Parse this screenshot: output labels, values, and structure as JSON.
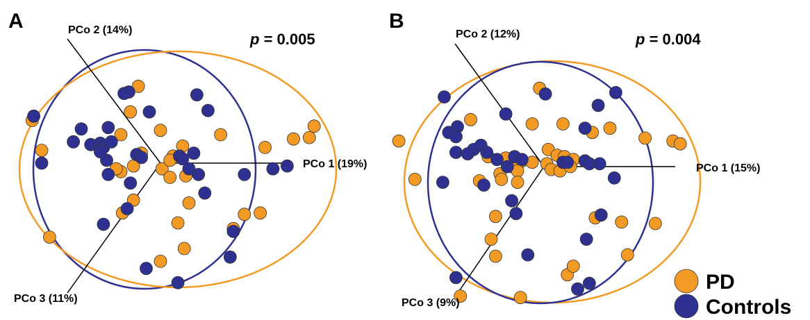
{
  "colors": {
    "PD": "#F39A24",
    "Controls": "#2E3192"
  },
  "legend": [
    {
      "key": "PD",
      "label": "PD"
    },
    {
      "key": "Controls",
      "label": "Controls"
    }
  ],
  "chart_data": [
    {
      "type": "scatter",
      "panel": "A",
      "p_label": "p",
      "p_value": "= 0.005",
      "axes": {
        "pco1": "PCo 1 (19%)",
        "pco2": "PCo 2 (14%)",
        "pco3": "PCo 3 (11%)"
      },
      "series": [
        {
          "name": "PD",
          "points": [
            [
              -0.14,
              0.54
            ],
            [
              -0.19,
              0.36
            ],
            [
              -0.81,
              0.3
            ],
            [
              -0.25,
              0.2
            ],
            [
              -0.75,
              0.09
            ],
            [
              0.0,
              0.23
            ],
            [
              0.08,
              0.05
            ],
            [
              0.14,
              0.12
            ],
            [
              0.38,
              0.2
            ],
            [
              0.66,
              0.11
            ],
            [
              0.84,
              0.17
            ],
            [
              0.94,
              0.18
            ],
            [
              0.97,
              0.26
            ],
            [
              -0.12,
              0.07
            ],
            [
              -0.17,
              -0.02
            ],
            [
              -0.25,
              -0.06
            ],
            [
              -0.28,
              -0.04
            ],
            [
              0.01,
              -0.04
            ],
            [
              0.06,
              0.02
            ],
            [
              0.06,
              -0.1
            ],
            [
              0.16,
              -0.09
            ],
            [
              -0.17,
              -0.26
            ],
            [
              0.18,
              -0.28
            ],
            [
              -0.24,
              -0.35
            ],
            [
              0.11,
              -0.42
            ],
            [
              0.53,
              -0.36
            ],
            [
              0.63,
              -0.35
            ],
            [
              0.46,
              -0.46
            ],
            [
              0.15,
              -0.6
            ],
            [
              0.0,
              -0.69
            ],
            [
              -0.7,
              -0.52
            ]
          ]
        },
        {
          "name": "Controls",
          "points": [
            [
              -0.2,
              0.5
            ],
            [
              -0.23,
              0.49
            ],
            [
              0.23,
              0.48
            ],
            [
              -0.8,
              0.33
            ],
            [
              -0.07,
              0.36
            ],
            [
              0.3,
              0.37
            ],
            [
              -0.5,
              0.24
            ],
            [
              -0.33,
              0.25
            ],
            [
              -0.55,
              0.15
            ],
            [
              -0.44,
              0.13
            ],
            [
              -0.38,
              0.14
            ],
            [
              -0.36,
              0.11
            ],
            [
              -0.31,
              0.15
            ],
            [
              -0.38,
              0.08
            ],
            [
              -0.15,
              0.06
            ],
            [
              -0.12,
              0.04
            ],
            [
              -0.34,
              0.02
            ],
            [
              -0.75,
              0.0
            ],
            [
              0.12,
              0.05
            ],
            [
              0.21,
              0.07
            ],
            [
              0.14,
              0.03
            ],
            [
              0.18,
              -0.04
            ],
            [
              0.24,
              -0.08
            ],
            [
              0.53,
              -0.08
            ],
            [
              0.71,
              -0.04
            ],
            [
              0.8,
              -0.02
            ],
            [
              -0.33,
              -0.08
            ],
            [
              -0.19,
              -0.14
            ],
            [
              -0.21,
              -0.32
            ],
            [
              0.28,
              -0.21
            ],
            [
              -0.36,
              -0.43
            ],
            [
              0.46,
              -0.48
            ],
            [
              -0.09,
              -0.74
            ],
            [
              0.44,
              -0.66
            ],
            [
              0.11,
              -0.84
            ]
          ]
        }
      ]
    },
    {
      "type": "scatter",
      "panel": "B",
      "p_label": "p",
      "p_value": "= 0.004",
      "axes": {
        "pco1": "PCo 1 (15%)",
        "pco2": "PCo 2 (12%)",
        "pco3": "PCo 3 (9%)"
      },
      "series": [
        {
          "name": "PD",
          "points": [
            [
              -0.03,
              0.55
            ],
            [
              -0.5,
              0.33
            ],
            [
              -0.08,
              0.3
            ],
            [
              0.13,
              0.3
            ],
            [
              0.45,
              0.27
            ],
            [
              0.33,
              0.24
            ],
            [
              0.69,
              0.2
            ],
            [
              0.88,
              0.18
            ],
            [
              0.93,
              0.16
            ],
            [
              -0.99,
              0.18
            ],
            [
              0.03,
              0.12
            ],
            [
              0.09,
              0.08
            ],
            [
              0.14,
              0.07
            ],
            [
              0.2,
              0.05
            ],
            [
              -0.38,
              0.07
            ],
            [
              -0.26,
              0.06
            ],
            [
              -0.15,
              0.04
            ],
            [
              -0.08,
              0.03
            ],
            [
              0.02,
              0.02
            ],
            [
              0.05,
              -0.02
            ],
            [
              0.11,
              -0.03
            ],
            [
              0.18,
              0.0
            ],
            [
              -0.22,
              0.0
            ],
            [
              -0.18,
              -0.03
            ],
            [
              -0.3,
              -0.05
            ],
            [
              -0.29,
              -0.09
            ],
            [
              -0.18,
              -0.11
            ],
            [
              -0.44,
              -0.1
            ],
            [
              -0.88,
              -0.09
            ],
            [
              0.35,
              -0.36
            ],
            [
              0.53,
              -0.39
            ],
            [
              0.76,
              -0.4
            ],
            [
              -0.33,
              -0.35
            ],
            [
              -0.36,
              -0.51
            ],
            [
              -0.33,
              -0.63
            ],
            [
              0.16,
              -0.76
            ],
            [
              0.2,
              -0.7
            ],
            [
              0.57,
              -0.62
            ],
            [
              -0.16,
              -0.92
            ],
            [
              -0.57,
              -0.91
            ]
          ]
        },
        {
          "name": "Controls",
          "points": [
            [
              -0.68,
              0.49
            ],
            [
              0.01,
              0.51
            ],
            [
              0.37,
              0.43
            ],
            [
              0.49,
              0.52
            ],
            [
              -0.26,
              0.37
            ],
            [
              -0.59,
              0.28
            ],
            [
              -0.65,
              0.24
            ],
            [
              -0.6,
              0.21
            ],
            [
              0.28,
              0.27
            ],
            [
              -0.48,
              0.12
            ],
            [
              -0.6,
              0.1
            ],
            [
              -0.52,
              0.09
            ],
            [
              -0.43,
              0.15
            ],
            [
              -0.39,
              0.1
            ],
            [
              -0.32,
              0.05
            ],
            [
              -0.2,
              0.07
            ],
            [
              -0.15,
              0.05
            ],
            [
              -0.25,
              0.0
            ],
            [
              0.13,
              0.03
            ],
            [
              0.16,
              0.03
            ],
            [
              0.28,
              0.04
            ],
            [
              0.31,
              0.02
            ],
            [
              0.38,
              0.02
            ],
            [
              -0.41,
              -0.13
            ],
            [
              -0.69,
              -0.11
            ],
            [
              0.48,
              -0.08
            ],
            [
              -0.22,
              -0.24
            ],
            [
              -0.19,
              -0.33
            ],
            [
              0.39,
              -0.34
            ],
            [
              0.29,
              -0.51
            ],
            [
              -0.11,
              -0.62
            ],
            [
              0.31,
              -0.82
            ],
            [
              -0.6,
              -0.78
            ],
            [
              0.23,
              -0.86
            ]
          ]
        }
      ]
    }
  ]
}
